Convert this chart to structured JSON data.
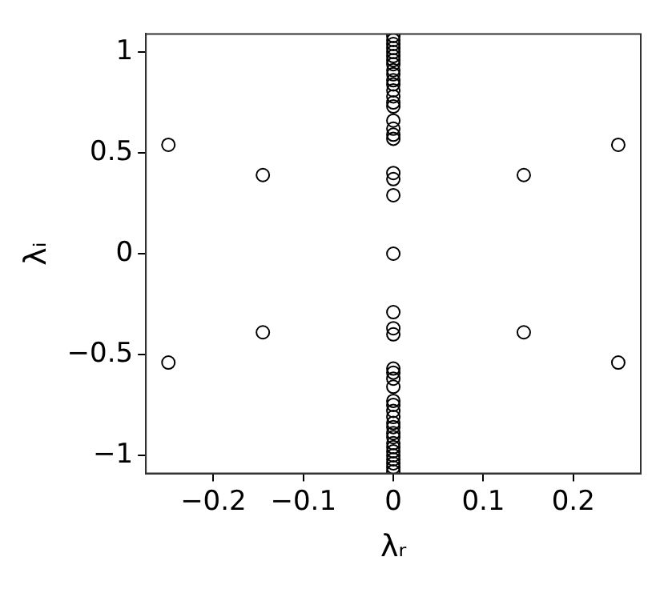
{
  "chart_data": {
    "type": "scatter",
    "xlabel": "λᵣ",
    "ylabel": "λᵢ",
    "xlim": [
      -0.275,
      0.275
    ],
    "ylim": [
      -1.09,
      1.09
    ],
    "xticks": [
      -0.2,
      -0.1,
      0,
      0.1,
      0.2
    ],
    "yticks": [
      -1,
      -0.5,
      0,
      0.5,
      1
    ],
    "grid": false,
    "legend": false,
    "marker": "circle",
    "series": [
      {
        "color": "#000000",
        "x": [
          -0.25,
          -0.25,
          -0.145,
          -0.145,
          0.145,
          0.145,
          0.25,
          0.25,
          0,
          0,
          0,
          0,
          0,
          0,
          0,
          0,
          0,
          0,
          0,
          0,
          0,
          0,
          0,
          0,
          0,
          0,
          0,
          0,
          0,
          0,
          0,
          0,
          0,
          0,
          0,
          0,
          0,
          0,
          0,
          0,
          0,
          0,
          0,
          0,
          0,
          0,
          0,
          0,
          0,
          0,
          0,
          0,
          0,
          0,
          0
        ],
        "values": [
          0.54,
          -0.54,
          0.39,
          -0.39,
          0.39,
          -0.39,
          0.54,
          -0.54,
          0,
          0.29,
          0.37,
          0.4,
          0.57,
          0.59,
          0.62,
          0.66,
          0.73,
          0.75,
          0.78,
          0.81,
          0.84,
          0.86,
          0.89,
          0.91,
          0.94,
          0.96,
          0.98,
          1.0,
          1.02,
          1.04,
          1.06,
          1.08,
          -0.29,
          -0.37,
          -0.4,
          -0.57,
          -0.59,
          -0.62,
          -0.66,
          -0.73,
          -0.75,
          -0.78,
          -0.81,
          -0.84,
          -0.86,
          -0.89,
          -0.91,
          -0.94,
          -0.96,
          -0.98,
          -1.0,
          -1.02,
          -1.04,
          -1.06,
          -1.08
        ]
      }
    ]
  }
}
